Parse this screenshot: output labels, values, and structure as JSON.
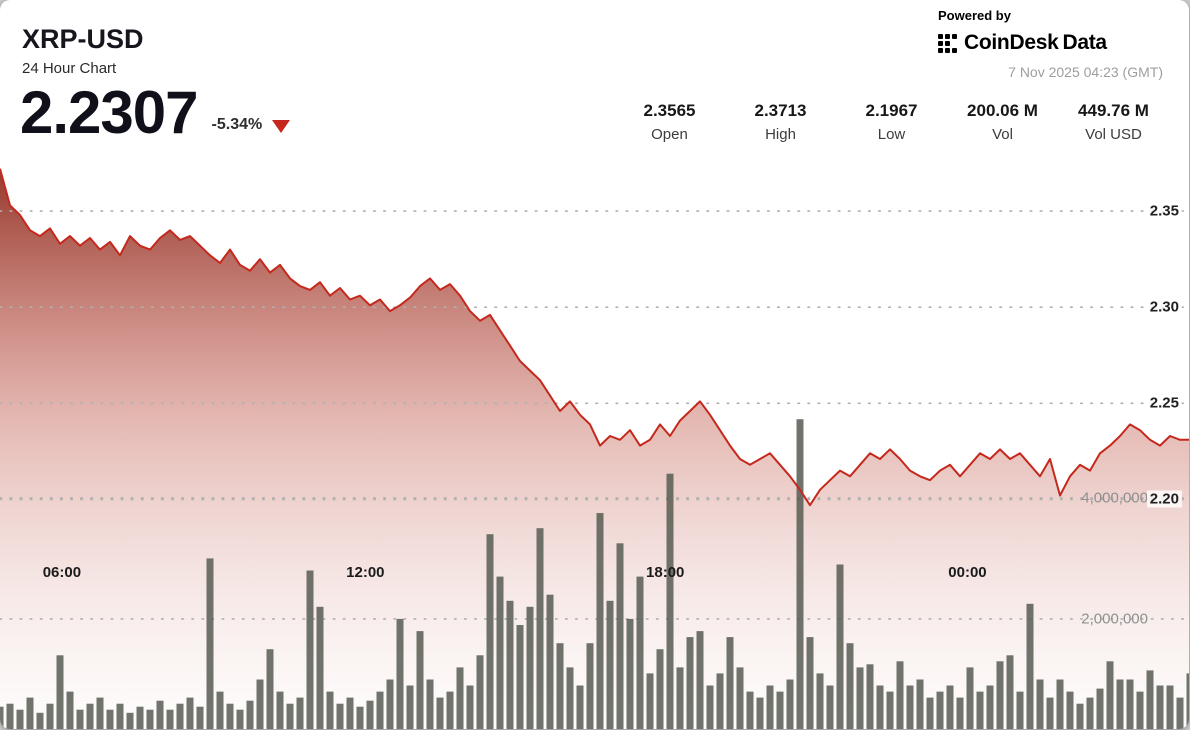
{
  "header": {
    "symbol": "XRP-USD",
    "subtitle": "24 Hour Chart",
    "price": "2.2307",
    "change": "-5.34%",
    "change_direction": "down"
  },
  "branding": {
    "powered_by": "Powered by",
    "brand_coindesk": "CoinDesk",
    "brand_data": "Data",
    "timestamp": "7 Nov 2025 04:23 (GMT)"
  },
  "stats": [
    {
      "value": "2.3565",
      "label": "Open"
    },
    {
      "value": "2.3713",
      "label": "High"
    },
    {
      "value": "2.1967",
      "label": "Low"
    },
    {
      "value": "200.06 M",
      "label": "Vol"
    },
    {
      "value": "449.76 M",
      "label": "Vol USD"
    }
  ],
  "colors": {
    "line": "#c5281c",
    "area_top": "#8f2a1e",
    "area_mid": "#c0584a",
    "area_bottom": "#e8c7c2",
    "volume_bar": "#575c52",
    "change_triangle": "#c5271e",
    "grid": "#b0b0b0"
  },
  "chart_data": {
    "type": "line",
    "title": "XRP-USD 24 Hour Chart",
    "legend": "none",
    "grid": "dotted-horizontal",
    "x_ticks": [
      {
        "label": "06:00",
        "pos": 0.052
      },
      {
        "label": "12:00",
        "pos": 0.307
      },
      {
        "label": "18:00",
        "pos": 0.559
      },
      {
        "label": "00:00",
        "pos": 0.813
      }
    ],
    "price_axis": {
      "side": "right",
      "ylim": [
        2.08,
        2.374
      ],
      "ticks": [
        2.35,
        2.3,
        2.25,
        2.2
      ],
      "tick_labels": [
        "2.35",
        "2.30",
        "2.25",
        "2.20"
      ]
    },
    "volume_axis": {
      "side": "right",
      "ylim": [
        0,
        9500000
      ],
      "ticks": [
        4000000,
        2000000
      ],
      "tick_labels": [
        "4,000,000",
        "2,000,000"
      ]
    },
    "series": [
      {
        "name": "price",
        "type": "area-line",
        "values": [
          2.372,
          2.353,
          2.348,
          2.34,
          2.337,
          2.341,
          2.333,
          2.337,
          2.332,
          2.336,
          2.33,
          2.334,
          2.327,
          2.337,
          2.332,
          2.33,
          2.336,
          2.34,
          2.335,
          2.337,
          2.332,
          2.327,
          2.323,
          2.33,
          2.322,
          2.319,
          2.325,
          2.318,
          2.322,
          2.315,
          2.311,
          2.309,
          2.313,
          2.306,
          2.31,
          2.304,
          2.306,
          2.301,
          2.304,
          2.298,
          2.301,
          2.305,
          2.311,
          2.315,
          2.309,
          2.312,
          2.306,
          2.298,
          2.293,
          2.296,
          2.288,
          2.28,
          2.272,
          2.267,
          2.262,
          2.254,
          2.246,
          2.251,
          2.244,
          2.239,
          2.228,
          2.233,
          2.231,
          2.236,
          2.228,
          2.231,
          2.239,
          2.233,
          2.241,
          2.246,
          2.251,
          2.244,
          2.236,
          2.228,
          2.221,
          2.218,
          2.221,
          2.224,
          2.218,
          2.212,
          2.205,
          2.197,
          2.205,
          2.21,
          2.215,
          2.212,
          2.218,
          2.224,
          2.221,
          2.226,
          2.221,
          2.215,
          2.212,
          2.21,
          2.215,
          2.218,
          2.212,
          2.218,
          2.224,
          2.221,
          2.226,
          2.221,
          2.224,
          2.218,
          2.212,
          2.221,
          2.202,
          2.212,
          2.218,
          2.215,
          2.224,
          2.228,
          2.233,
          2.239,
          2.236,
          2.231,
          2.228,
          2.233,
          2.231,
          2.231
        ]
      },
      {
        "name": "volume",
        "type": "bar",
        "scale": 1000000,
        "values": [
          0.55,
          0.6,
          0.5,
          0.7,
          0.45,
          0.6,
          1.4,
          0.8,
          0.5,
          0.6,
          0.7,
          0.5,
          0.6,
          0.45,
          0.55,
          0.5,
          0.65,
          0.5,
          0.6,
          0.7,
          0.55,
          3.0,
          0.8,
          0.6,
          0.5,
          0.65,
          1.0,
          1.5,
          0.8,
          0.6,
          0.7,
          2.8,
          2.2,
          0.8,
          0.6,
          0.7,
          0.55,
          0.65,
          0.8,
          1.0,
          2.0,
          0.9,
          1.8,
          1.0,
          0.7,
          0.8,
          1.2,
          0.9,
          1.4,
          3.4,
          2.7,
          2.3,
          1.9,
          2.2,
          3.5,
          2.4,
          1.6,
          1.2,
          0.9,
          1.6,
          3.75,
          2.3,
          3.25,
          2.0,
          2.7,
          1.1,
          1.5,
          4.4,
          1.2,
          1.7,
          1.8,
          0.9,
          1.1,
          1.7,
          1.2,
          0.8,
          0.7,
          0.9,
          0.8,
          1.0,
          5.3,
          1.7,
          1.1,
          0.9,
          2.9,
          1.6,
          1.2,
          1.25,
          0.9,
          0.8,
          1.3,
          0.9,
          1.0,
          0.7,
          0.8,
          0.9,
          0.7,
          1.2,
          0.8,
          0.9,
          1.3,
          1.4,
          0.8,
          2.25,
          1.0,
          0.7,
          1.0,
          0.8,
          0.6,
          0.7,
          0.85,
          1.3,
          1.0,
          1.0,
          0.8,
          1.15,
          0.9,
          0.9,
          0.7,
          1.1
        ]
      }
    ]
  }
}
